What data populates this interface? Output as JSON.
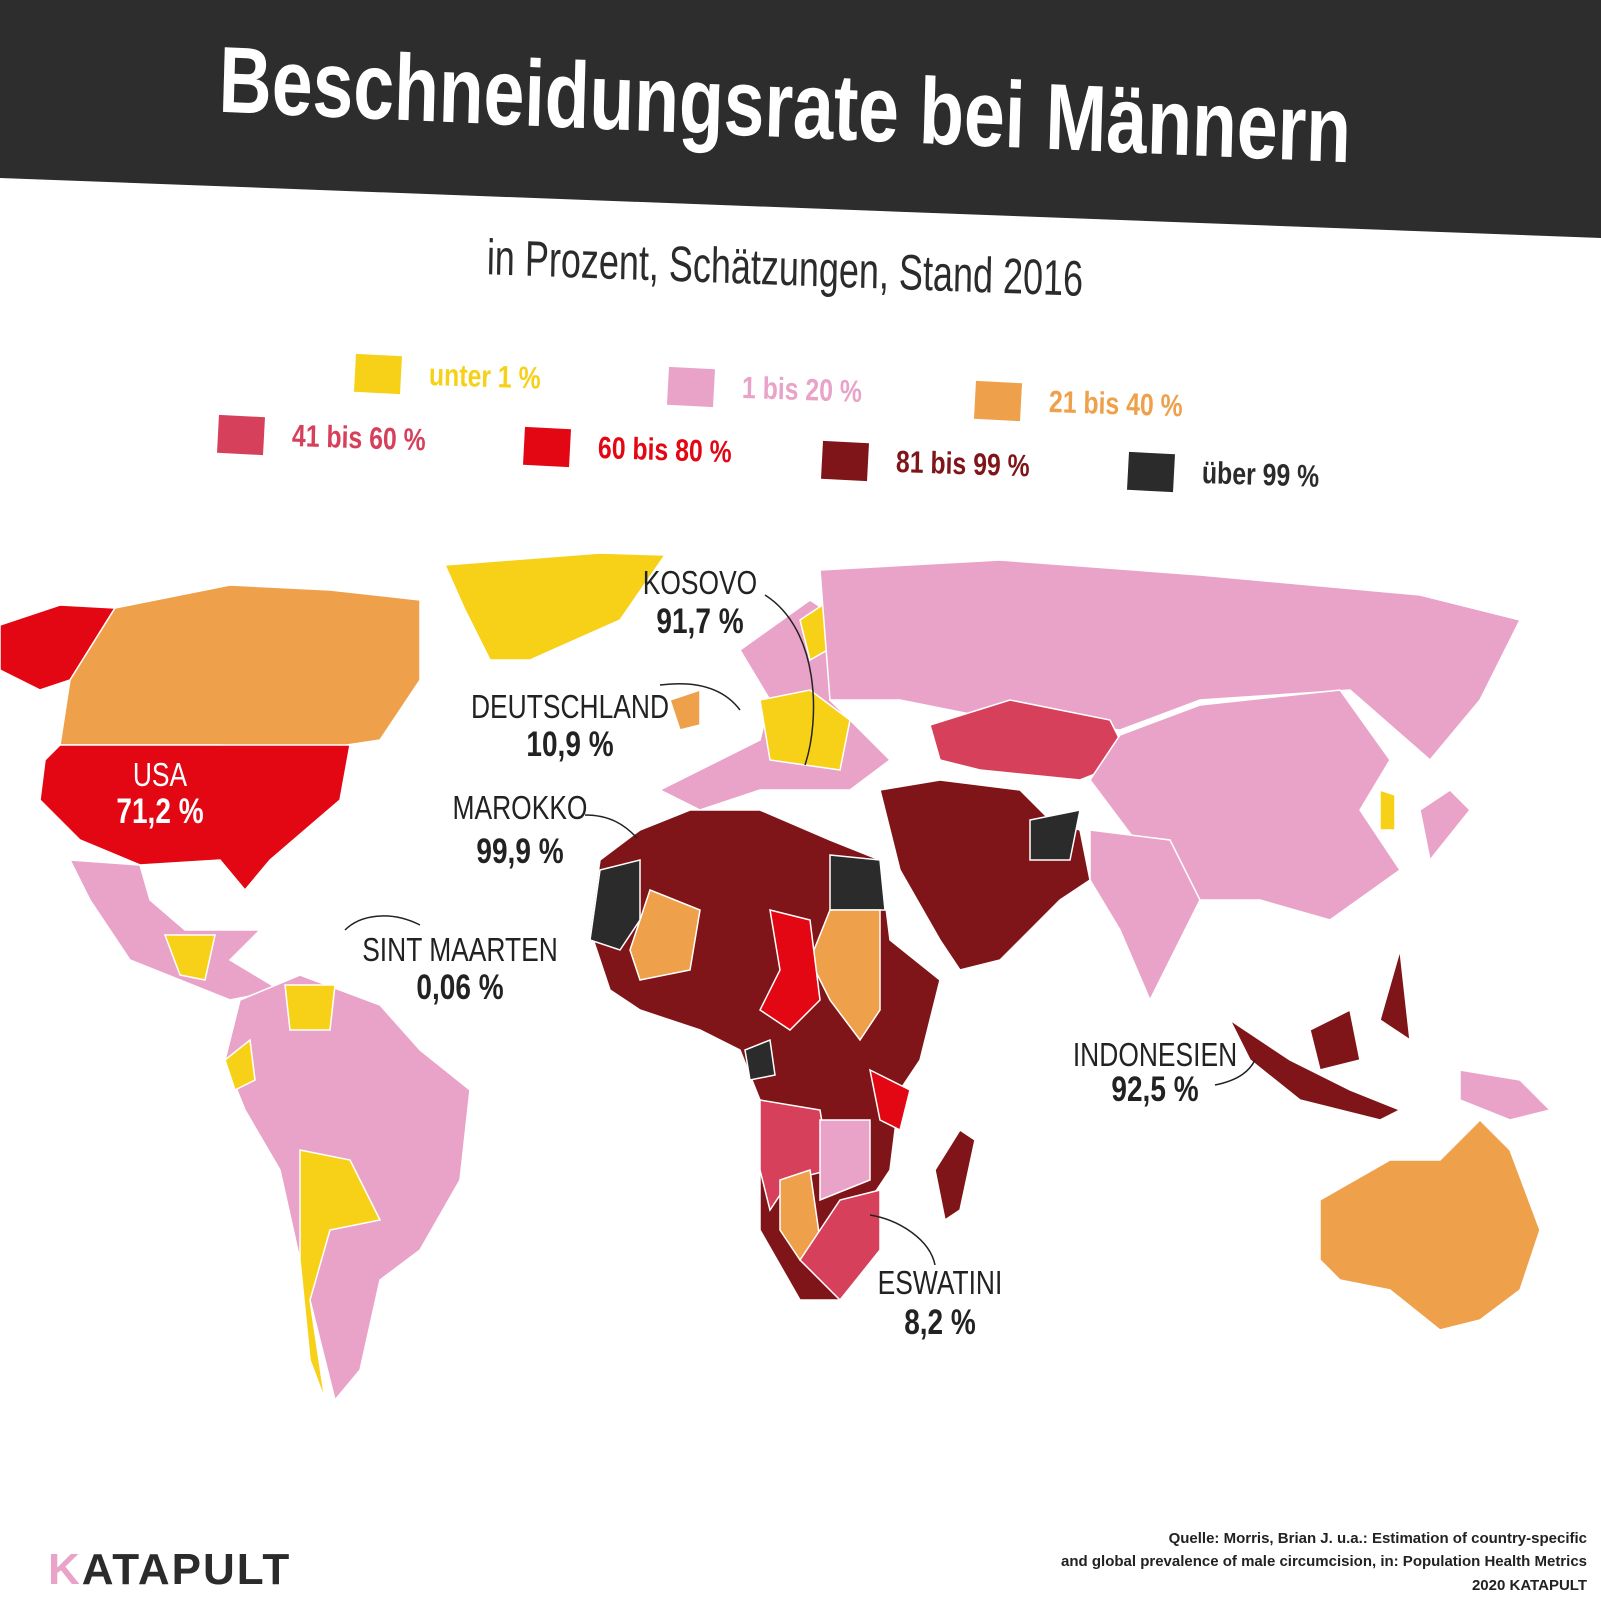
{
  "header": {
    "title": "Beschneidungsrate bei Männern",
    "subtitle": "in Prozent, Schätzungen, Stand 2016"
  },
  "legend": [
    {
      "label": "unter 1 %",
      "color": "#f7d117"
    },
    {
      "label": "1 bis 20 %",
      "color": "#e9a3c8"
    },
    {
      "label": "21 bis 40 %",
      "color": "#eea04a"
    },
    {
      "label": "41 bis 60 %",
      "color": "#d6405b"
    },
    {
      "label": "60 bis 80 %",
      "color": "#e30613"
    },
    {
      "label": "81 bis 99 %",
      "color": "#7f1518"
    },
    {
      "label": "über 99 %",
      "color": "#2b2b2b"
    }
  ],
  "annotations": [
    {
      "label": "USA",
      "value": "71,2 %"
    },
    {
      "label": "KOSOVO",
      "value": "91,7 %"
    },
    {
      "label": "DEUTSCHLAND",
      "value": "10,9 %"
    },
    {
      "label": "MAROKKO",
      "value": "99,9 %"
    },
    {
      "label": "SINT MAARTEN",
      "value": "0,06 %"
    },
    {
      "label": "INDONESIEN",
      "value": "92,5 %"
    },
    {
      "label": "ESWATINI",
      "value": "8,2 %"
    }
  ],
  "source": {
    "lines": [
      "Quelle: Morris, Brian J. u.a.: Estimation of country-specific",
      "and global prevalence of male circumcision, in: Population Health Metrics"
    ],
    "copyright": "2020 KATAPULT"
  },
  "logo": "KATAPULT"
}
